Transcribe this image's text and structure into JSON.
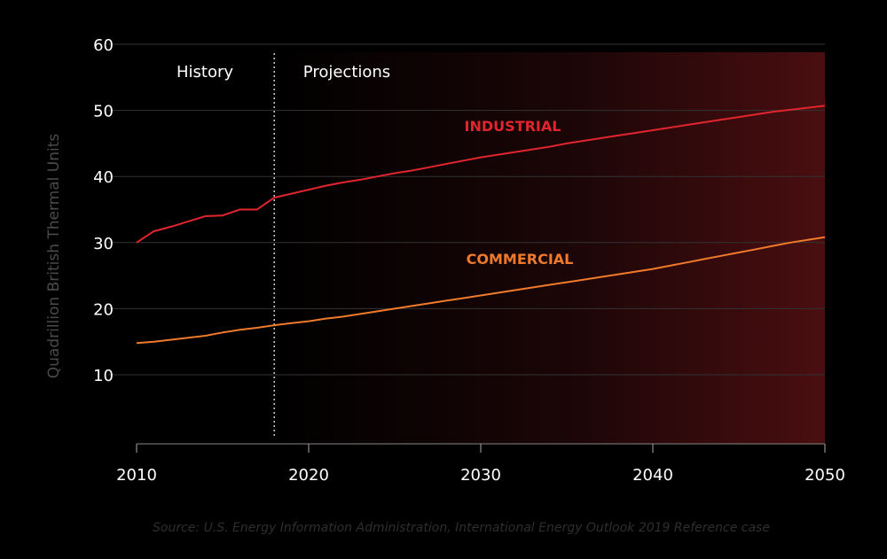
{
  "chart_data": {
    "type": "line",
    "ylabel": "Quadrillion British Thermal Units",
    "xlim": [
      2010,
      2050
    ],
    "ylim": [
      0,
      60
    ],
    "x_ticks": [
      2010,
      2020,
      2030,
      2040,
      2050
    ],
    "y_ticks": [
      10,
      20,
      30,
      40,
      50,
      60
    ],
    "grid": true,
    "divider_year": 2018,
    "regions": {
      "history": "History",
      "projections": "Projections"
    },
    "series": [
      {
        "name": "INDUSTRIAL",
        "color": "#e0252f",
        "points": [
          [
            2010,
            30.0
          ],
          [
            2011,
            31.7
          ],
          [
            2012,
            32.4
          ],
          [
            2013,
            33.2
          ],
          [
            2014,
            34.0
          ],
          [
            2015,
            34.1
          ],
          [
            2016,
            35.0
          ],
          [
            2017,
            35.0
          ],
          [
            2018,
            36.8
          ],
          [
            2019,
            37.4
          ],
          [
            2020,
            38.0
          ],
          [
            2021,
            38.6
          ],
          [
            2022,
            39.1
          ],
          [
            2023,
            39.5
          ],
          [
            2024,
            40.0
          ],
          [
            2025,
            40.5
          ],
          [
            2026,
            40.9
          ],
          [
            2027,
            41.4
          ],
          [
            2028,
            41.9
          ],
          [
            2029,
            42.4
          ],
          [
            2030,
            42.9
          ],
          [
            2031,
            43.3
          ],
          [
            2032,
            43.7
          ],
          [
            2033,
            44.1
          ],
          [
            2034,
            44.5
          ],
          [
            2035,
            45.0
          ],
          [
            2036,
            45.4
          ],
          [
            2037,
            45.8
          ],
          [
            2038,
            46.2
          ],
          [
            2039,
            46.6
          ],
          [
            2040,
            47.0
          ],
          [
            2041,
            47.4
          ],
          [
            2042,
            47.8
          ],
          [
            2043,
            48.2
          ],
          [
            2044,
            48.6
          ],
          [
            2045,
            49.0
          ],
          [
            2046,
            49.4
          ],
          [
            2047,
            49.8
          ],
          [
            2048,
            50.1
          ],
          [
            2049,
            50.4
          ],
          [
            2050,
            50.7
          ]
        ]
      },
      {
        "name": "COMMERCIAL",
        "color": "#f07a2c",
        "points": [
          [
            2010,
            14.8
          ],
          [
            2011,
            15.0
          ],
          [
            2012,
            15.3
          ],
          [
            2013,
            15.6
          ],
          [
            2014,
            15.9
          ],
          [
            2015,
            16.4
          ],
          [
            2016,
            16.8
          ],
          [
            2017,
            17.1
          ],
          [
            2018,
            17.5
          ],
          [
            2019,
            17.8
          ],
          [
            2020,
            18.1
          ],
          [
            2021,
            18.5
          ],
          [
            2022,
            18.8
          ],
          [
            2023,
            19.2
          ],
          [
            2024,
            19.6
          ],
          [
            2025,
            20.0
          ],
          [
            2026,
            20.4
          ],
          [
            2027,
            20.8
          ],
          [
            2028,
            21.2
          ],
          [
            2029,
            21.6
          ],
          [
            2030,
            22.0
          ],
          [
            2031,
            22.4
          ],
          [
            2032,
            22.8
          ],
          [
            2033,
            23.2
          ],
          [
            2034,
            23.6
          ],
          [
            2035,
            24.0
          ],
          [
            2036,
            24.4
          ],
          [
            2037,
            24.8
          ],
          [
            2038,
            25.2
          ],
          [
            2039,
            25.6
          ],
          [
            2040,
            26.0
          ],
          [
            2041,
            26.5
          ],
          [
            2042,
            27.0
          ],
          [
            2043,
            27.5
          ],
          [
            2044,
            28.0
          ],
          [
            2045,
            28.5
          ],
          [
            2046,
            29.0
          ],
          [
            2047,
            29.5
          ],
          [
            2048,
            30.0
          ],
          [
            2049,
            30.4
          ],
          [
            2050,
            30.8
          ]
        ]
      }
    ],
    "series_labels": [
      {
        "text": "INDUSTRIAL",
        "color": "#e0252f"
      },
      {
        "text": "COMMERCIAL",
        "color": "#f07a2c"
      }
    ],
    "source": "Source: U.S. Energy Information Administration, International Energy Outlook 2019 Reference case"
  }
}
